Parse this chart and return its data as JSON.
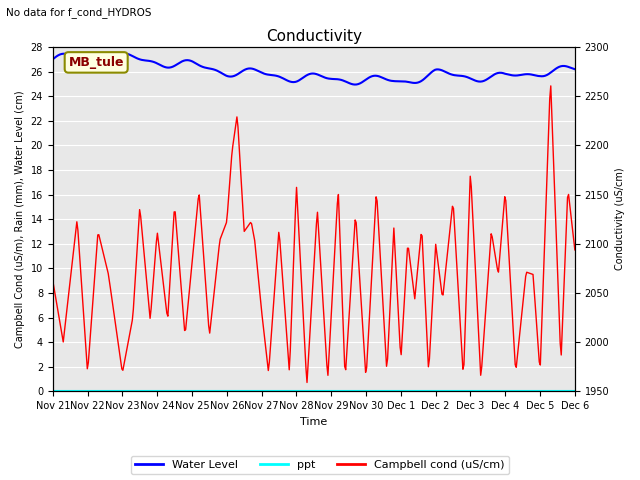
{
  "title": "Conductivity",
  "subtitle": "No data for f_cond_HYDROS",
  "xlabel": "Time",
  "ylabel_left": "Campbell Cond (uS/m), Rain (mm), Water Level (cm)",
  "ylabel_right": "Conductivity (uS/cm)",
  "ylim_left": [
    0,
    28
  ],
  "ylim_right": [
    1950,
    2300
  ],
  "legend_labels": [
    "Water Level",
    "ppt",
    "Campbell cond (uS/cm)"
  ],
  "legend_colors": [
    "blue",
    "cyan",
    "red"
  ],
  "xtick_labels": [
    "Nov 21",
    "Nov 22",
    "Nov 23",
    "Nov 24",
    "Nov 25",
    "Nov 26",
    "Nov 27",
    "Nov 28",
    "Nov 29",
    "Nov 30",
    "Dec 1",
    "Dec 2",
    "Dec 3",
    "Dec 4",
    "Dec 5",
    "Dec 6"
  ],
  "mb_tule_label": "MB_tule",
  "bg_color": "#e8e8e8",
  "grid_color": "white",
  "water_level_color": "blue",
  "ppt_color": "cyan",
  "campbell_color": "red"
}
